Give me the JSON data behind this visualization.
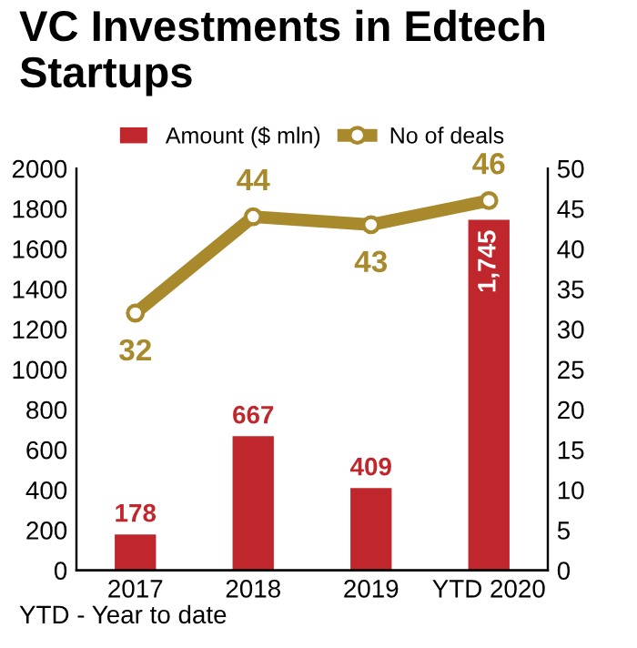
{
  "chart_data": {
    "type": "bar",
    "title": "VC Investments in Edtech Startups",
    "categories": [
      "2017",
      "2018",
      "2019",
      "YTD 2020"
    ],
    "series": [
      {
        "name": "Amount ($ mln)",
        "color": "#c0272d",
        "values": [
          178,
          667,
          409,
          1745
        ],
        "value_labels": [
          "178",
          "667",
          "409",
          "1,745"
        ]
      },
      {
        "name": "No of deals",
        "color": "#a88a2c",
        "values": [
          32,
          44,
          43,
          46
        ],
        "type": "line",
        "axis": "y2",
        "marker": "circle"
      }
    ],
    "ylim": [
      0,
      2000
    ],
    "yticks": [
      0,
      200,
      400,
      600,
      800,
      1000,
      1200,
      1400,
      1600,
      1800,
      2000
    ],
    "y2lim": [
      0,
      50
    ],
    "y2ticks": [
      0,
      5,
      10,
      15,
      20,
      25,
      30,
      35,
      40,
      45,
      50
    ],
    "data_labels": true,
    "legend": "top",
    "grid": false,
    "annotations": [
      "YTD - Year to date"
    ]
  }
}
